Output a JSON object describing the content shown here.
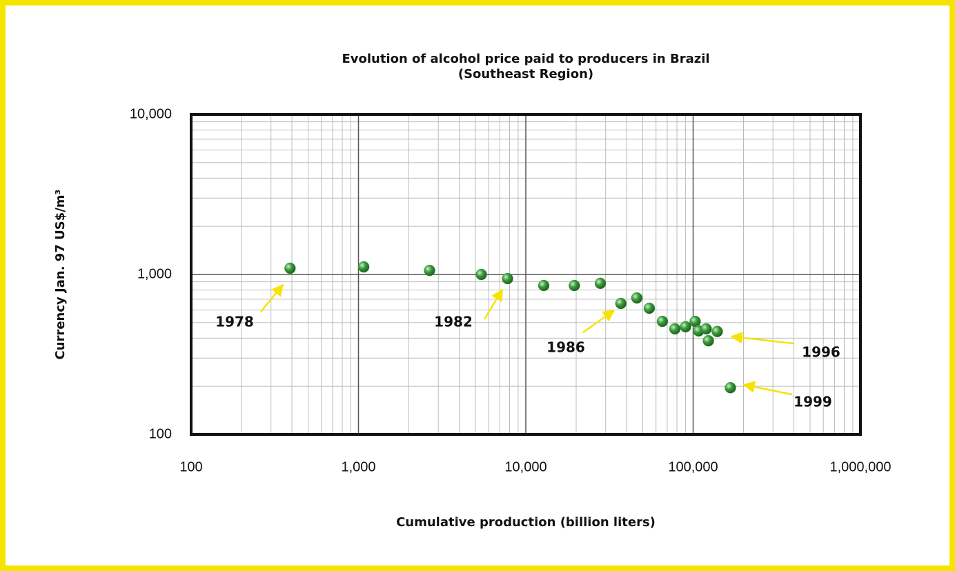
{
  "chart_data": {
    "type": "scatter",
    "title": "Evolution of alcohol price paid to producers in Brazil",
    "subtitle": "(Southeast Region)",
    "x_label": "Cumulative production (billion liters)",
    "y_label": "Currency  Jan. 97 US$/m³",
    "x_scale": "log",
    "y_scale": "log",
    "grid": true,
    "color": "#3a9a3a",
    "x": [
      390,
      1075,
      2660,
      5420,
      7780,
      12800,
      19500,
      27900,
      37000,
      46100,
      54700,
      65500,
      77800,
      90100,
      102800,
      107900,
      119700,
      123300,
      139400,
      167000
    ],
    "values": [
      1094,
      1115,
      1060,
      1000,
      942,
      853,
      853,
      880,
      659,
      713,
      615,
      509,
      457,
      471,
      509,
      444,
      457,
      385,
      440,
      196
    ],
    "xlim": [
      100,
      1000000
    ],
    "ylim": [
      100,
      10000
    ],
    "xticks": [
      100,
      {
        "value": 1000,
        "label": "1,000"
      },
      {
        "value": 10000,
        "label": "10,000"
      },
      {
        "value": 100000,
        "label": "100,000"
      },
      {
        "value": 1000000,
        "label": "1,000,000"
      }
    ],
    "yticks": [
      100,
      {
        "value": 1000,
        "label": "1,000"
      },
      {
        "value": 10000,
        "label": "10,000"
      }
    ],
    "annotations": [
      {
        "text": "1978"
      },
      {
        "text": "1982"
      },
      {
        "text": "1986"
      },
      {
        "text": "1996"
      },
      {
        "text": "1999"
      }
    ]
  }
}
